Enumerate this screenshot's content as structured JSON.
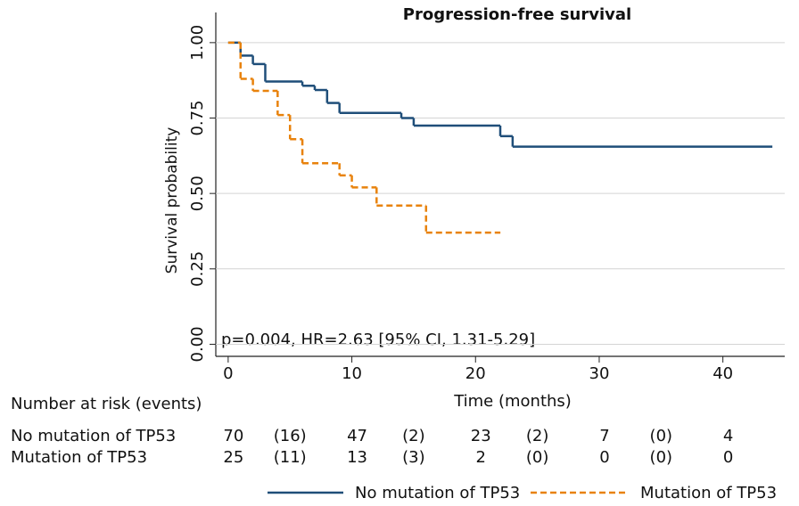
{
  "chart_data": {
    "type": "step",
    "title": "Progression-free survival",
    "x_label": "Time (months)",
    "y_label": "Survival probability",
    "annotation": "p=0.004, HR=2.63 [95% CI, 1.31-5.29]",
    "xlim": [
      -1,
      45
    ],
    "xticks": [
      0,
      10,
      20,
      30,
      40
    ],
    "ylim": [
      -0.04,
      1.1
    ],
    "yticks": [
      {
        "value": 0,
        "label": "0.00"
      },
      {
        "value": 0.25,
        "label": "0.25"
      },
      {
        "value": 0.5,
        "label": "0.50"
      },
      {
        "value": 0.75,
        "label": "0.75"
      },
      {
        "value": 1,
        "label": "1.00"
      }
    ],
    "grid": true,
    "series": [
      {
        "name": "No mutation of TP53",
        "color": "#1f4e79",
        "dashed": false,
        "x": [
          0,
          1,
          2,
          3,
          6,
          7,
          8,
          9,
          14,
          15,
          22,
          23,
          44
        ],
        "values": [
          1.0,
          0.957,
          0.929,
          0.871,
          0.857,
          0.843,
          0.8,
          0.767,
          0.75,
          0.725,
          0.69,
          0.655,
          0.655
        ]
      },
      {
        "name": "Mutation of TP53",
        "color": "#e8820c",
        "dashed": true,
        "x": [
          0,
          1,
          2,
          4,
          5,
          6,
          9,
          10,
          12,
          16,
          22
        ],
        "values": [
          1.0,
          0.88,
          0.84,
          0.76,
          0.68,
          0.6,
          0.56,
          0.52,
          0.46,
          0.37,
          0.37
        ]
      }
    ],
    "risk_table": {
      "title": "Number at risk (events)",
      "x": [
        0,
        10,
        20,
        30,
        40
      ],
      "rows": [
        {
          "at_risk": [
            70,
            47,
            23,
            7,
            4
          ],
          "events": [
            {
              "value": 16,
              "label": "(16)"
            },
            {
              "value": 2,
              "label": "(2)"
            },
            {
              "value": 2,
              "label": "(2)"
            },
            {
              "value": 0,
              "label": "(0)"
            }
          ]
        },
        {
          "at_risk": [
            25,
            13,
            2,
            0,
            0
          ],
          "events": [
            {
              "value": 11,
              "label": "(11)"
            },
            {
              "value": 3,
              "label": "(3)"
            },
            {
              "value": 0,
              "label": "(0)"
            },
            {
              "value": 0,
              "label": "(0)"
            }
          ]
        }
      ]
    }
  }
}
